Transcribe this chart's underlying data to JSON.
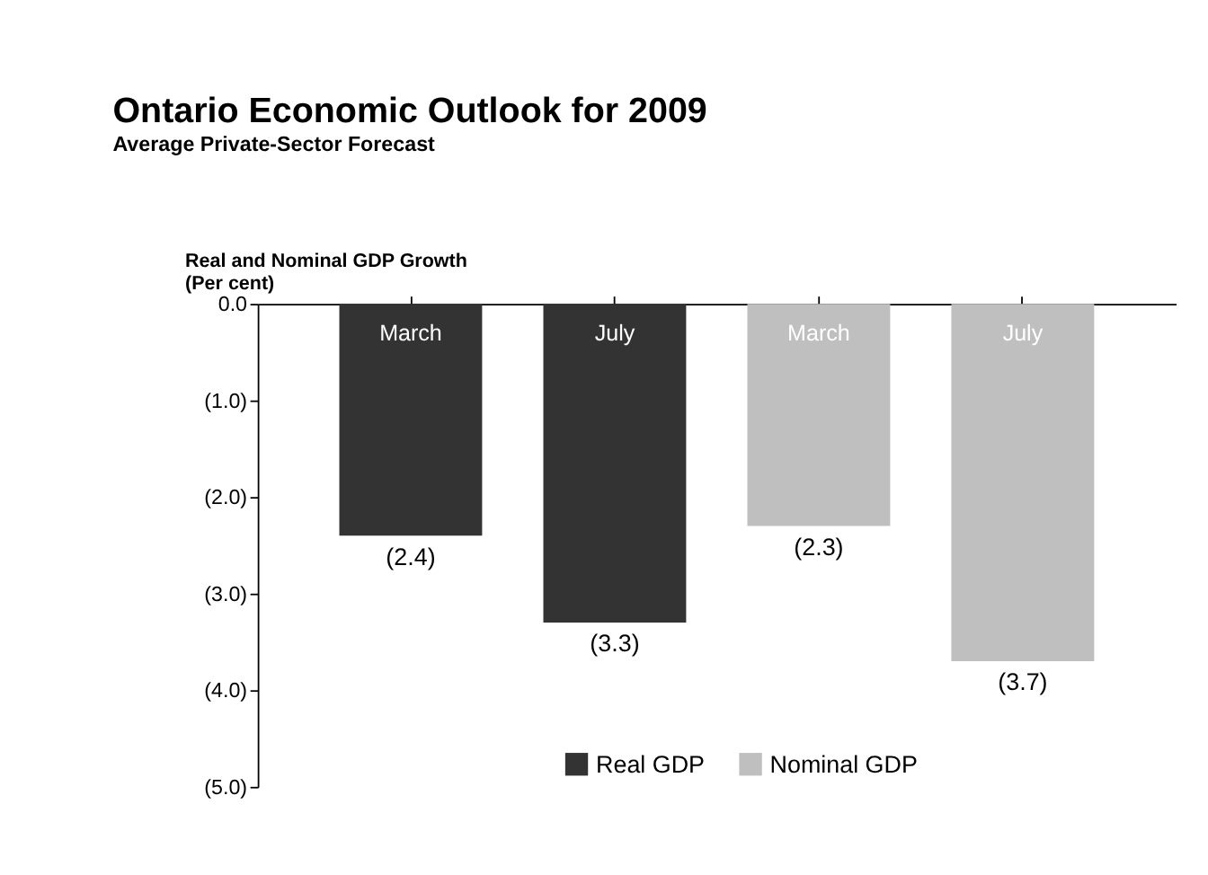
{
  "chart_data": {
    "type": "bar",
    "title": "Ontario Economic Outlook for 2009",
    "subtitle": "Average Private-Sector Forecast",
    "ylabel": "Real and Nominal GDP Growth\n(Per cent)",
    "categories": [
      "March",
      "July",
      "March",
      "July"
    ],
    "series": [
      {
        "name": "Real GDP",
        "color": "#333333",
        "values": [
          -2.4,
          -3.3,
          null,
          null
        ],
        "value_labels": [
          "(2.4)",
          "(3.3)",
          null,
          null
        ]
      },
      {
        "name": "Nominal GDP",
        "color": "#bfbfbf",
        "values": [
          null,
          null,
          -2.3,
          -3.7
        ],
        "value_labels": [
          null,
          null,
          "(2.3)",
          "(3.7)"
        ]
      }
    ],
    "ylim": [
      -5,
      0
    ],
    "yticks": [
      {
        "value": 0,
        "label": "0.0"
      },
      {
        "value": -1,
        "label": "(1.0)"
      },
      {
        "value": -2,
        "label": "(2.0)"
      },
      {
        "value": -3,
        "label": "(3.0)"
      },
      {
        "value": -4,
        "label": "(4.0)"
      },
      {
        "value": -5,
        "label": "(5.0)"
      }
    ],
    "legend": "bottom",
    "grid": false
  }
}
